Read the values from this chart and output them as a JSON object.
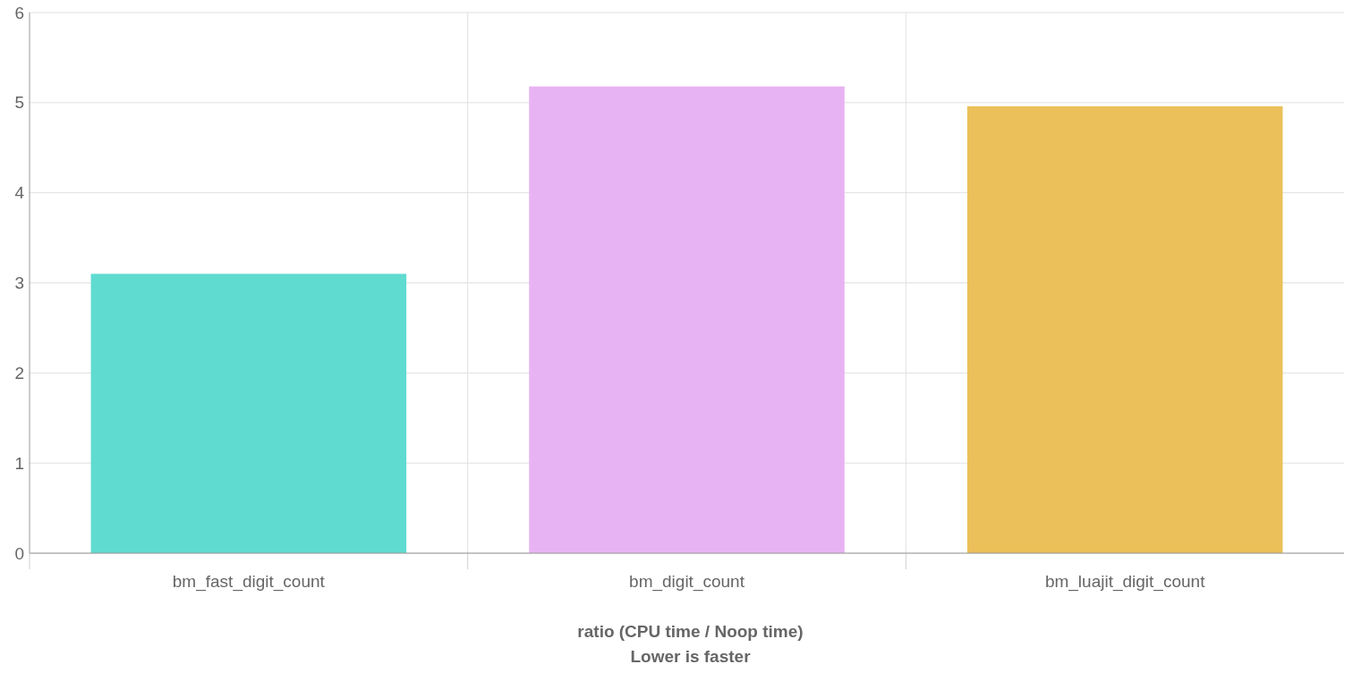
{
  "chart_data": {
    "type": "bar",
    "categories": [
      "bm_fast_digit_count",
      "bm_digit_count",
      "bm_luajit_digit_count"
    ],
    "values": [
      3.1,
      5.18,
      4.96
    ],
    "colors": [
      "#60dbd0",
      "#e8b3f3",
      "#ebc05a"
    ],
    "ylim": [
      0,
      6
    ],
    "yticks": [
      0,
      1,
      2,
      3,
      4,
      5,
      6
    ],
    "grid": true,
    "xlabel": "ratio (CPU time / Noop time)\nLower is faster"
  }
}
